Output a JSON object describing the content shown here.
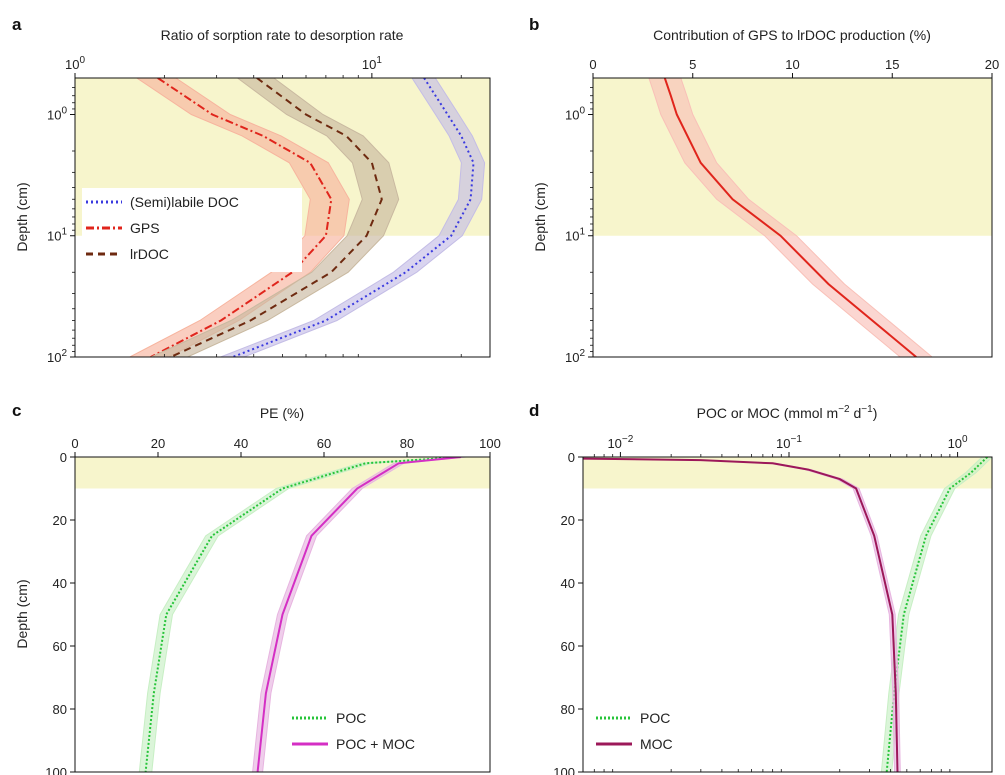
{
  "figure": {
    "shade_color": "#f7f5cc"
  },
  "chart_data": [
    {
      "panel": "a",
      "type": "line",
      "title": "Ratio of sorption rate to desorption rate",
      "xlabel": "",
      "ylabel": "Depth (cm)",
      "x_scale": "log",
      "y_scale": "log",
      "xlim": [
        1,
        25
      ],
      "ylim": [
        100,
        0.5
      ],
      "x_ticks": [
        {
          "value": 1,
          "base": "10",
          "exp": "0"
        },
        {
          "value": 10,
          "base": "10",
          "exp": "1"
        }
      ],
      "y_ticks": [
        {
          "value": 1,
          "base": "10",
          "exp": "0"
        },
        {
          "value": 10,
          "base": "10",
          "exp": "1"
        },
        {
          "value": 100,
          "base": "10",
          "exp": "2"
        }
      ],
      "shaded_depth": [
        0.5,
        10
      ],
      "legend": {
        "position": "middle-left",
        "box_color": "#ffffff"
      },
      "series": [
        {
          "name": "(Semi)labile DOC",
          "color": "#3a3adf",
          "dash": "2,3",
          "band": "#c4bde6",
          "band_rel": 0.09,
          "x": [
            15,
            18,
            20,
            22,
            21.5,
            18.5,
            13,
            7,
            3.4
          ],
          "depth": [
            0.5,
            1,
            1.5,
            2.5,
            5,
            10,
            20,
            50,
            100
          ]
        },
        {
          "name": "GPS",
          "color": "#e0251c",
          "dash": "8,3,2,3",
          "band": "#f7b49e",
          "band_rel": 0.15,
          "x": [
            1.9,
            2.9,
            4.3,
            6.2,
            7.3,
            7.0,
            5.4,
            3.1,
            1.8
          ],
          "depth": [
            0.5,
            1,
            1.5,
            2.5,
            5,
            10,
            20,
            50,
            100
          ]
        },
        {
          "name": "lrDOC",
          "color": "#6e2a10",
          "dash": "7,5",
          "band": "#c9b9a0",
          "band_rel": 0.14,
          "x": [
            4.1,
            6.0,
            8.2,
            10.0,
            10.8,
            9.6,
            7.3,
            3.9,
            2.1
          ],
          "depth": [
            0.5,
            1,
            1.5,
            2.5,
            5,
            10,
            20,
            50,
            100
          ]
        }
      ]
    },
    {
      "panel": "b",
      "type": "line",
      "title": "Contribution of GPS to lrDOC production (%)",
      "xlabel": "",
      "ylabel": "Depth (cm)",
      "x_scale": "linear",
      "y_scale": "log",
      "xlim": [
        0,
        20
      ],
      "ylim": [
        100,
        0.5
      ],
      "x_ticks": [
        {
          "value": 0,
          "label": "0"
        },
        {
          "value": 5,
          "label": "5"
        },
        {
          "value": 10,
          "label": "10"
        },
        {
          "value": 15,
          "label": "15"
        },
        {
          "value": 20,
          "label": "20"
        }
      ],
      "y_ticks": [
        {
          "value": 1,
          "base": "10",
          "exp": "0"
        },
        {
          "value": 10,
          "base": "10",
          "exp": "1"
        },
        {
          "value": 100,
          "base": "10",
          "exp": "2"
        }
      ],
      "shaded_depth": [
        0.5,
        10
      ],
      "series": [
        {
          "name": "",
          "color": "#e0251c",
          "dash": "",
          "band": "#f9c0b8",
          "band_abs": 0.8,
          "x": [
            3.6,
            3.9,
            4.2,
            5.4,
            7.0,
            9.4,
            11.8,
            14.0,
            16.2
          ],
          "depth": [
            0.5,
            0.7,
            1,
            2.5,
            5,
            10,
            25,
            50,
            100
          ]
        }
      ]
    },
    {
      "panel": "c",
      "type": "line",
      "title": "PE (%)",
      "xlabel": "",
      "ylabel": "Depth (cm)",
      "x_scale": "linear",
      "y_scale": "linear",
      "xlim": [
        0,
        100
      ],
      "ylim": [
        100,
        0
      ],
      "x_ticks": [
        {
          "value": 0,
          "label": "0"
        },
        {
          "value": 20,
          "label": "20"
        },
        {
          "value": 40,
          "label": "40"
        },
        {
          "value": 60,
          "label": "60"
        },
        {
          "value": 80,
          "label": "80"
        },
        {
          "value": 100,
          "label": "100"
        }
      ],
      "y_ticks": [
        {
          "value": 0,
          "label": "0"
        },
        {
          "value": 20,
          "label": "20"
        },
        {
          "value": 40,
          "label": "40"
        },
        {
          "value": 60,
          "label": "60"
        },
        {
          "value": 80,
          "label": "80"
        },
        {
          "value": 100,
          "label": "100"
        }
      ],
      "shaded_depth": [
        0,
        10
      ],
      "legend": {
        "position": "bottom-right",
        "box_color": ""
      },
      "series": [
        {
          "name": "POC",
          "color": "#27c43a",
          "dash": "2,2",
          "band": "#c7efc4",
          "band_abs": 1.5,
          "x": [
            93,
            70,
            50,
            33,
            22,
            19,
            17
          ],
          "depth": [
            0,
            2,
            10,
            25,
            50,
            75,
            100
          ]
        },
        {
          "name": "POC + MOC",
          "color": "#d42fc4",
          "dash": "",
          "band": "#e7b4e0",
          "band_abs": 1.2,
          "x": [
            93,
            78,
            68,
            57,
            50,
            46,
            44
          ],
          "depth": [
            0,
            2,
            10,
            25,
            50,
            75,
            100
          ]
        }
      ]
    },
    {
      "panel": "d",
      "type": "line",
      "title": "POC or MOC (mmol m",
      "title_sup1": "−2",
      "title_mid": " d",
      "title_sup2": "−1",
      "title_end": ")",
      "xlabel": "",
      "ylabel": "",
      "x_scale": "log",
      "y_scale": "linear",
      "xlim": [
        0.006,
        1.6
      ],
      "ylim": [
        100,
        0
      ],
      "x_ticks": [
        {
          "value": 0.01,
          "base": "10",
          "exp": "−2"
        },
        {
          "value": 0.1,
          "base": "10",
          "exp": "−1"
        },
        {
          "value": 1,
          "base": "10",
          "exp": "0"
        }
      ],
      "y_ticks": [
        {
          "value": 0,
          "label": "0"
        },
        {
          "value": 20,
          "label": "20"
        },
        {
          "value": 40,
          "label": "40"
        },
        {
          "value": 60,
          "label": "60"
        },
        {
          "value": 80,
          "label": "80"
        },
        {
          "value": 100,
          "label": "100"
        }
      ],
      "shaded_depth": [
        0,
        10
      ],
      "legend": {
        "position": "bottom-left",
        "box_color": ""
      },
      "series": [
        {
          "name": "POC",
          "color": "#27c43a",
          "dash": "2,2",
          "band": "#c7efc4",
          "band_rel": 0.07,
          "x": [
            1.5,
            1.2,
            0.9,
            0.65,
            0.48,
            0.42,
            0.38
          ],
          "depth": [
            0,
            5,
            10,
            25,
            50,
            75,
            100
          ]
        },
        {
          "name": "MOC",
          "color": "#9c1859",
          "dash": "",
          "band": "#e7b4e0",
          "band_rel": 0.04,
          "x": [
            0.006,
            0.03,
            0.08,
            0.13,
            0.2,
            0.25,
            0.32,
            0.41,
            0.43,
            0.44
          ],
          "depth": [
            0.5,
            1,
            2,
            4,
            7,
            10,
            25,
            50,
            75,
            100
          ]
        }
      ]
    }
  ]
}
